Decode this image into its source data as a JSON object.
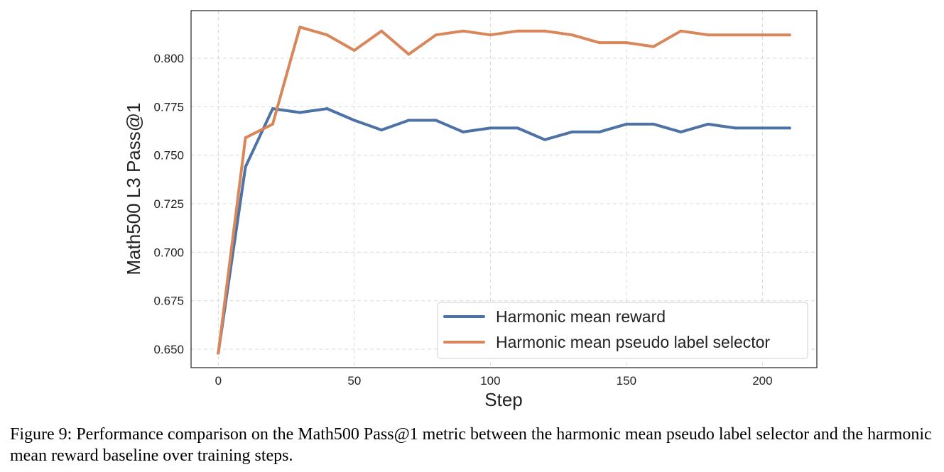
{
  "chart_data": {
    "type": "line",
    "title": "",
    "xlabel": "Step",
    "ylabel": "Math500 L3 Pass@1",
    "xlim": [
      -10,
      220
    ],
    "ylim": [
      0.6405,
      0.8245
    ],
    "xticks": [
      0,
      50,
      100,
      150,
      200
    ],
    "yticks": [
      0.65,
      0.675,
      0.7,
      0.725,
      0.75,
      0.775,
      0.8
    ],
    "ytick_labels": [
      "0.650",
      "0.675",
      "0.700",
      "0.725",
      "0.750",
      "0.775",
      "0.800"
    ],
    "grid": true,
    "legend_position": "bottom-right",
    "x": [
      0,
      10,
      20,
      30,
      40,
      50,
      60,
      70,
      80,
      90,
      100,
      110,
      120,
      130,
      140,
      150,
      160,
      170,
      180,
      190,
      200,
      210
    ],
    "series": [
      {
        "name": "Harmonic mean reward",
        "color": "#4c72a6",
        "values": [
          0.648,
          0.744,
          0.774,
          0.772,
          0.774,
          0.768,
          0.763,
          0.768,
          0.768,
          0.762,
          0.764,
          0.764,
          0.758,
          0.762,
          0.762,
          0.766,
          0.766,
          0.762,
          0.766,
          0.764,
          0.764,
          0.764
        ]
      },
      {
        "name": "Harmonic mean pseudo label selector",
        "color": "#d9875a",
        "values": [
          0.648,
          0.759,
          0.766,
          0.816,
          0.812,
          0.804,
          0.814,
          0.802,
          0.812,
          0.814,
          0.812,
          0.814,
          0.814,
          0.812,
          0.808,
          0.808,
          0.806,
          0.814,
          0.812,
          0.812,
          0.812,
          0.812
        ]
      }
    ]
  },
  "caption": "Figure 9: Performance comparison on the Math500 Pass@1 metric between the harmonic mean pseudo label selector and the harmonic mean reward baseline over training steps."
}
